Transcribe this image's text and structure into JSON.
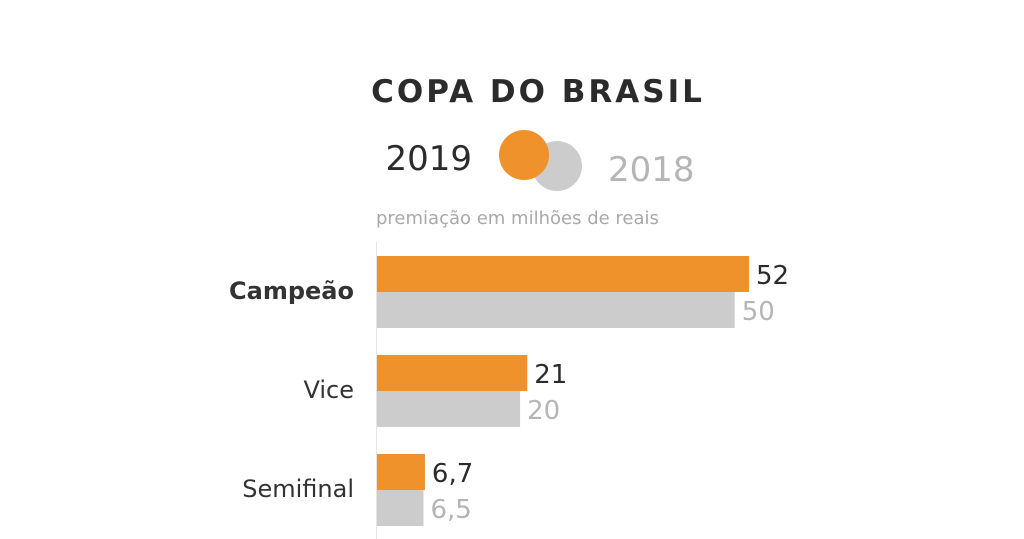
{
  "chart_data": {
    "type": "bar",
    "orientation": "horizontal",
    "title": "COPA DO BRASIL",
    "subtitle": "premiação em milhões de reais",
    "categories": [
      "Campeão",
      "Vice",
      "Semifinal"
    ],
    "series": [
      {
        "name": "2019",
        "color": "#f0922c",
        "values": [
          52,
          21,
          6.7
        ],
        "labels": [
          "52",
          "21",
          "6,7"
        ],
        "label_color": "#2b2b2b"
      },
      {
        "name": "2018",
        "color": "#cccccc",
        "values": [
          50,
          20,
          6.5
        ],
        "labels": [
          "50",
          "20",
          "6,5"
        ],
        "label_color": "#b5b5b5"
      }
    ],
    "xlim": [
      0,
      52
    ],
    "grid": false,
    "legend": "top",
    "emphasized_category": "Campeão"
  }
}
